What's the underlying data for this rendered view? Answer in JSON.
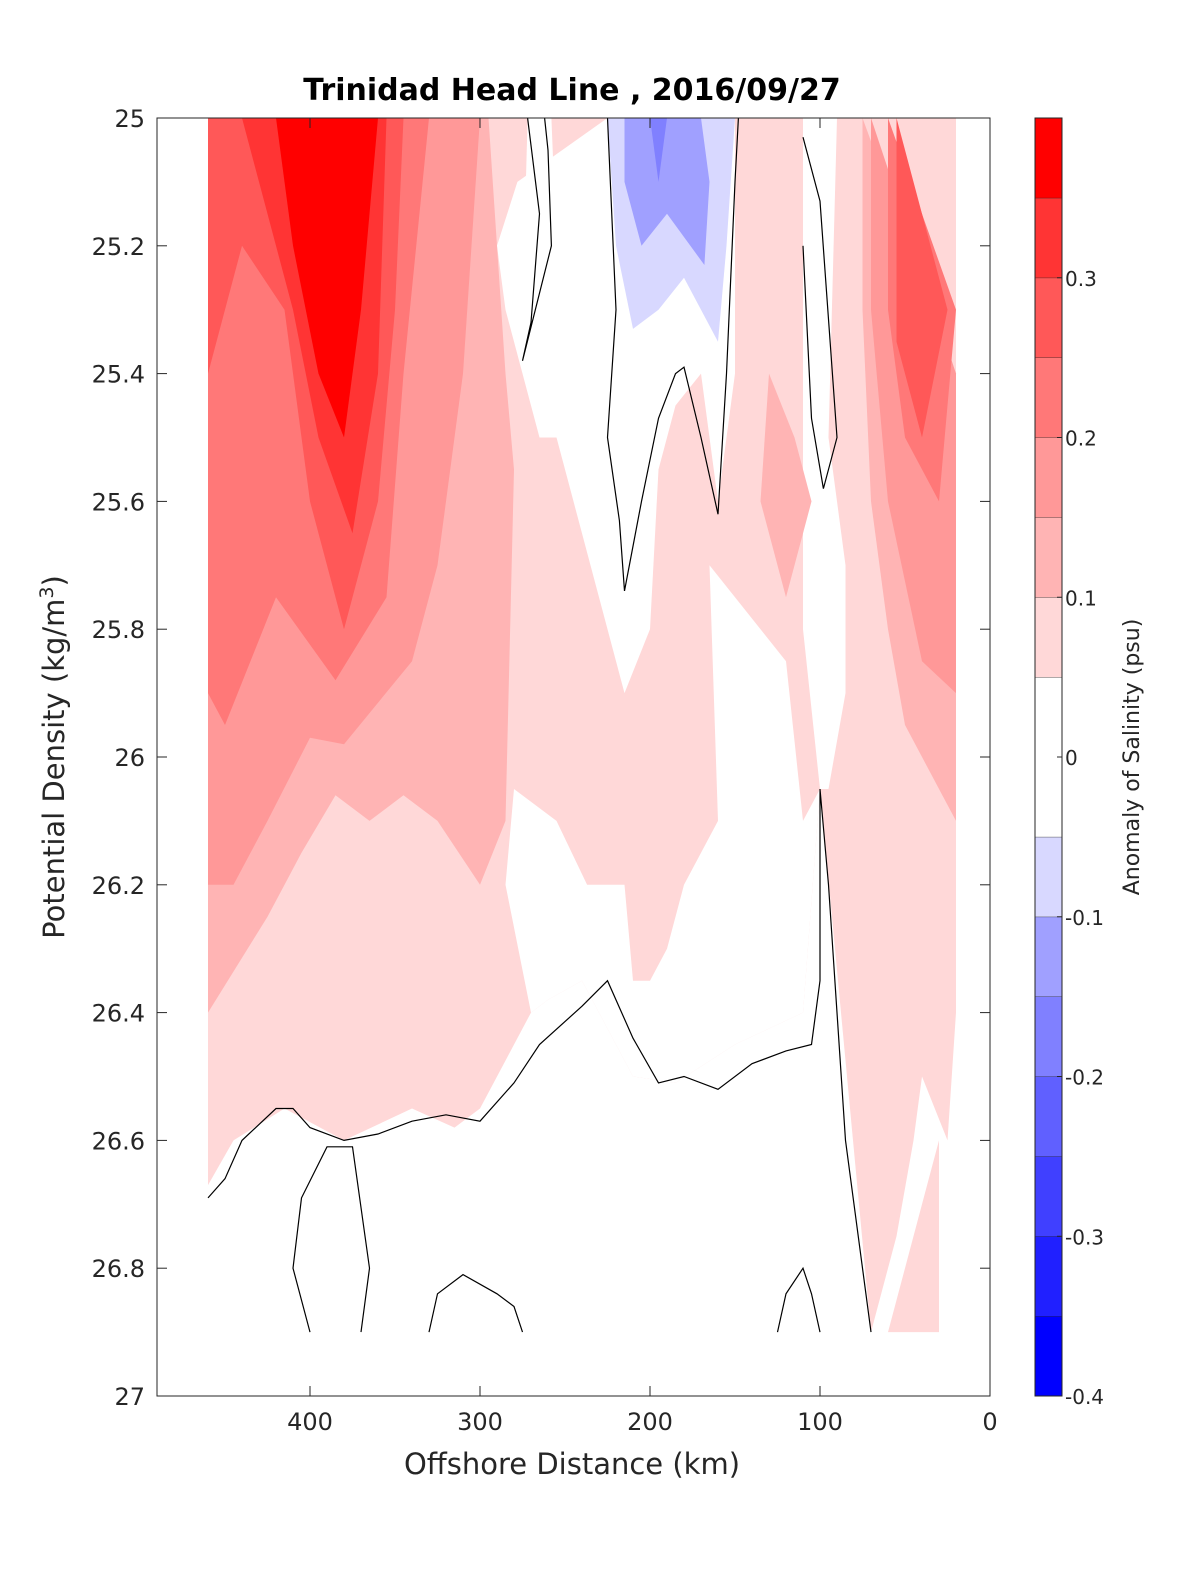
{
  "chart_data": {
    "type": "heatmap",
    "subtype": "filled-contour",
    "title": "Trinidad Head Line , 2016/09/27",
    "xlabel": "Offshore Distance (km)",
    "ylabel": "Potential Density (kg/m",
    "ylabel_superscript": "3",
    "ylabel_close": ")",
    "xlim": [
      490,
      0
    ],
    "x_reversed": true,
    "ylim": [
      25,
      27
    ],
    "y_reversed": true,
    "x_ticks": [
      "400",
      "300",
      "200",
      "100",
      "0"
    ],
    "x_tick_values": [
      400,
      300,
      200,
      100,
      0
    ],
    "y_ticks": [
      "25",
      "25.2",
      "25.4",
      "25.6",
      "25.8",
      "26",
      "26.2",
      "26.4",
      "26.6",
      "26.8",
      "27"
    ],
    "y_tick_values": [
      25,
      25.2,
      25.4,
      25.6,
      25.8,
      26,
      26.2,
      26.4,
      26.6,
      26.8,
      27
    ],
    "colorbar": {
      "label": "Anomaly of Salinity (psu)",
      "range": [
        -0.4,
        0.4
      ],
      "tick_labels": [
        "0.3",
        "0.2",
        "0.1",
        "0",
        "-0.1",
        "-0.2",
        "-0.3",
        "-0.4"
      ],
      "tick_values": [
        0.3,
        0.2,
        0.1,
        0,
        -0.1,
        -0.2,
        -0.3,
        -0.4
      ],
      "levels": [
        {
          "from": -0.4,
          "to": -0.35,
          "color": "#0000ff"
        },
        {
          "from": -0.35,
          "to": -0.3,
          "color": "#2020ff"
        },
        {
          "from": -0.3,
          "to": -0.25,
          "color": "#4040ff"
        },
        {
          "from": -0.25,
          "to": -0.2,
          "color": "#6060ff"
        },
        {
          "from": -0.2,
          "to": -0.15,
          "color": "#8080ff"
        },
        {
          "from": -0.15,
          "to": -0.1,
          "color": "#a0a0ff"
        },
        {
          "from": -0.1,
          "to": -0.05,
          "color": "#d8d8ff"
        },
        {
          "from": -0.05,
          "to": 0.05,
          "color": "#ffffff"
        },
        {
          "from": 0.05,
          "to": 0.1,
          "color": "#ffd8d8"
        },
        {
          "from": 0.1,
          "to": 0.15,
          "color": "#ffb4b4"
        },
        {
          "from": 0.15,
          "to": 0.2,
          "color": "#ff9898"
        },
        {
          "from": 0.2,
          "to": 0.25,
          "color": "#ff7878"
        },
        {
          "from": 0.25,
          "to": 0.3,
          "color": "#ff5858"
        },
        {
          "from": 0.3,
          "to": 0.35,
          "color": "#ff3434"
        },
        {
          "from": 0.35,
          "to": 0.4,
          "color": "#ff0000"
        }
      ]
    },
    "data_extent": {
      "x_max": 460,
      "x_min": 20,
      "y_max": 26.9
    },
    "regions": [
      {
        "level": 0.075,
        "points": [
          [
            460,
            25
          ],
          [
            20,
            25
          ],
          [
            20,
            25.6
          ],
          [
            20,
            26
          ],
          [
            20,
            26.4
          ],
          [
            25,
            26.6
          ],
          [
            40,
            26.5
          ],
          [
            45,
            26.6
          ],
          [
            55,
            26.75
          ],
          [
            70,
            26.9
          ],
          [
            100,
            26.05
          ],
          [
            110,
            26.4
          ],
          [
            150,
            26.45
          ],
          [
            185,
            26.51
          ],
          [
            210,
            26.5
          ],
          [
            240,
            26.35
          ],
          [
            260,
            26.38
          ],
          [
            270,
            26.4
          ],
          [
            300,
            26.55
          ],
          [
            315,
            26.58
          ],
          [
            340,
            26.55
          ],
          [
            380,
            26.6
          ],
          [
            415,
            26.55
          ],
          [
            445,
            26.6
          ],
          [
            460,
            26.67
          ]
        ]
      },
      {
        "level": 0.025,
        "points": [
          [
            272,
            25
          ],
          [
            258,
            25
          ],
          [
            255,
            25.2
          ],
          [
            262,
            25.36
          ],
          [
            275,
            25.32
          ],
          [
            273,
            25.1
          ]
        ]
      },
      {
        "level": 0.025,
        "points": [
          [
            225,
            25
          ],
          [
            150,
            25
          ],
          [
            150,
            25.4
          ],
          [
            160,
            25.6
          ],
          [
            170,
            25.4
          ],
          [
            185,
            25.45
          ],
          [
            195,
            25.55
          ],
          [
            200,
            25.8
          ],
          [
            215,
            25.9
          ],
          [
            230,
            25.75
          ],
          [
            245,
            25.6
          ],
          [
            255,
            25.5
          ],
          [
            265,
            25.5
          ],
          [
            275,
            25.4
          ],
          [
            285,
            25.3
          ],
          [
            290,
            25.2
          ],
          [
            278,
            25.1
          ]
        ]
      },
      {
        "level": 0.025,
        "points": [
          [
            165,
            25.7
          ],
          [
            120,
            25.85
          ],
          [
            110,
            26.1
          ],
          [
            100,
            26.05
          ],
          [
            110,
            26.4
          ],
          [
            150,
            26.45
          ],
          [
            185,
            26.51
          ],
          [
            210,
            26.5
          ],
          [
            240,
            26.35
          ],
          [
            260,
            26.38
          ],
          [
            270,
            26.4
          ],
          [
            285,
            26.2
          ],
          [
            280,
            26.05
          ],
          [
            255,
            26.1
          ],
          [
            237,
            26.2
          ],
          [
            215,
            26.2
          ],
          [
            210,
            26.35
          ],
          [
            200,
            26.35
          ],
          [
            190,
            26.3
          ],
          [
            180,
            26.2
          ],
          [
            160,
            26.1
          ]
        ]
      },
      {
        "level": 0.025,
        "points": [
          [
            110,
            25
          ],
          [
            90,
            25
          ],
          [
            95,
            25.5
          ],
          [
            85,
            25.7
          ],
          [
            85,
            25.9
          ],
          [
            95,
            26.05
          ],
          [
            100,
            26.05
          ],
          [
            110,
            25.8
          ]
        ]
      },
      {
        "level": 0.125,
        "points": [
          [
            460,
            25
          ],
          [
            295,
            25
          ],
          [
            290,
            25.2
          ],
          [
            285,
            25.4
          ],
          [
            280,
            25.55
          ],
          [
            285,
            26.1
          ],
          [
            300,
            26.2
          ],
          [
            325,
            26.1
          ],
          [
            345,
            26.06
          ],
          [
            365,
            26.1
          ],
          [
            385,
            26.06
          ],
          [
            405,
            26.15
          ],
          [
            425,
            26.25
          ],
          [
            460,
            26.4
          ]
        ]
      },
      {
        "level": 0.125,
        "points": [
          [
            130,
            25.4
          ],
          [
            115,
            25.5
          ],
          [
            105,
            25.6
          ],
          [
            120,
            25.75
          ],
          [
            135,
            25.6
          ]
        ]
      },
      {
        "level": 0.125,
        "points": [
          [
            75,
            25
          ],
          [
            20,
            25.4
          ],
          [
            20,
            26.1
          ],
          [
            30,
            26.05
          ],
          [
            50,
            25.95
          ],
          [
            60,
            25.8
          ],
          [
            70,
            25.6
          ],
          [
            75,
            25.3
          ]
        ]
      },
      {
        "level": 0.175,
        "points": [
          [
            460,
            25
          ],
          [
            300,
            25
          ],
          [
            310,
            25.4
          ],
          [
            325,
            25.7
          ],
          [
            340,
            25.85
          ],
          [
            380,
            25.98
          ],
          [
            400,
            25.97
          ],
          [
            425,
            26.1
          ],
          [
            445,
            26.2
          ],
          [
            460,
            26.2
          ]
        ]
      },
      {
        "level": 0.175,
        "points": [
          [
            70,
            25
          ],
          [
            20,
            25.4
          ],
          [
            20,
            25.9
          ],
          [
            40,
            25.85
          ],
          [
            60,
            25.6
          ],
          [
            70,
            25.3
          ]
        ]
      },
      {
        "level": 0.225,
        "points": [
          [
            460,
            25
          ],
          [
            330,
            25
          ],
          [
            345,
            25.4
          ],
          [
            355,
            25.75
          ],
          [
            385,
            25.88
          ],
          [
            420,
            25.75
          ],
          [
            450,
            25.95
          ],
          [
            460,
            25.9
          ]
        ]
      },
      {
        "level": 0.225,
        "points": [
          [
            60,
            25
          ],
          [
            20,
            25.3
          ],
          [
            30,
            25.6
          ],
          [
            50,
            25.5
          ],
          [
            60,
            25.3
          ]
        ]
      },
      {
        "level": 0.275,
        "points": [
          [
            460,
            25
          ],
          [
            345,
            25
          ],
          [
            350,
            25.3
          ],
          [
            360,
            25.6
          ],
          [
            380,
            25.8
          ],
          [
            400,
            25.6
          ],
          [
            415,
            25.3
          ],
          [
            440,
            25.2
          ],
          [
            460,
            25.4
          ]
        ]
      },
      {
        "level": 0.275,
        "points": [
          [
            55,
            25
          ],
          [
            25,
            25.3
          ],
          [
            40,
            25.5
          ],
          [
            55,
            25.35
          ]
        ]
      },
      {
        "level": 0.325,
        "points": [
          [
            440,
            25
          ],
          [
            355,
            25
          ],
          [
            360,
            25.4
          ],
          [
            375,
            25.65
          ],
          [
            395,
            25.5
          ],
          [
            410,
            25.3
          ],
          [
            430,
            25.1
          ]
        ]
      },
      {
        "level": 0.375,
        "points": [
          [
            420,
            25
          ],
          [
            360,
            25
          ],
          [
            370,
            25.3
          ],
          [
            380,
            25.5
          ],
          [
            395,
            25.4
          ],
          [
            410,
            25.2
          ]
        ]
      },
      {
        "level": -0.075,
        "points": [
          [
            225,
            25
          ],
          [
            150,
            25
          ],
          [
            155,
            25.2
          ],
          [
            160,
            25.35
          ],
          [
            180,
            25.25
          ],
          [
            195,
            25.3
          ],
          [
            210,
            25.33
          ],
          [
            220,
            25.2
          ]
        ]
      },
      {
        "level": -0.125,
        "points": [
          [
            215,
            25
          ],
          [
            170,
            25
          ],
          [
            165,
            25.1
          ],
          [
            168,
            25.23
          ],
          [
            190,
            25.15
          ],
          [
            205,
            25.2
          ],
          [
            215,
            25.1
          ]
        ]
      },
      {
        "level": -0.175,
        "points": [
          [
            200,
            25
          ],
          [
            190,
            25
          ],
          [
            195,
            25.1
          ]
        ]
      },
      {
        "level": 0.075,
        "points": [
          [
            30,
            26.6
          ],
          [
            40,
            26.7
          ],
          [
            60,
            26.9
          ],
          [
            30,
            26.9
          ]
        ]
      }
    ],
    "contour_lines": [
      [
        [
          460,
          26.69
        ],
        [
          450,
          26.66
        ],
        [
          440,
          26.6
        ],
        [
          420,
          26.55
        ],
        [
          410,
          26.55
        ],
        [
          400,
          26.58
        ],
        [
          380,
          26.6
        ],
        [
          360,
          26.59
        ],
        [
          340,
          26.57
        ],
        [
          320,
          26.56
        ],
        [
          300,
          26.57
        ],
        [
          280,
          26.51
        ],
        [
          265,
          26.45
        ],
        [
          240,
          26.39
        ],
        [
          225,
          26.35
        ],
        [
          210,
          26.44
        ],
        [
          195,
          26.51
        ],
        [
          180,
          26.5
        ],
        [
          160,
          26.52
        ],
        [
          140,
          26.48
        ],
        [
          120,
          26.46
        ],
        [
          105,
          26.45
        ],
        [
          100,
          26.35
        ],
        [
          100,
          26.05
        ],
        [
          95,
          26.2
        ],
        [
          85,
          26.6
        ],
        [
          70,
          26.9
        ]
      ],
      [
        [
          400,
          26.9
        ],
        [
          410,
          26.8
        ],
        [
          405,
          26.69
        ],
        [
          390,
          26.61
        ],
        [
          375,
          26.61
        ],
        [
          365,
          26.8
        ],
        [
          370,
          26.9
        ]
      ],
      [
        [
          330,
          26.9
        ],
        [
          325,
          26.84
        ],
        [
          310,
          26.81
        ],
        [
          290,
          26.84
        ],
        [
          280,
          26.86
        ],
        [
          275,
          26.9
        ]
      ],
      [
        [
          125,
          26.9
        ],
        [
          120,
          26.84
        ],
        [
          110,
          26.8
        ],
        [
          105,
          26.84
        ],
        [
          100,
          26.9
        ]
      ],
      [
        [
          272,
          25
        ],
        [
          265,
          25.15
        ],
        [
          270,
          25.32
        ],
        [
          275,
          25.38
        ],
        [
          258,
          25.2
        ],
        [
          260,
          25.05
        ],
        [
          262,
          25
        ]
      ],
      [
        [
          225,
          25
        ],
        [
          220,
          25.3
        ],
        [
          225,
          25.5
        ],
        [
          218,
          25.63
        ],
        [
          215,
          25.74
        ],
        [
          205,
          25.6
        ],
        [
          195,
          25.47
        ],
        [
          185,
          25.4
        ],
        [
          180,
          25.39
        ],
        [
          170,
          25.5
        ],
        [
          160,
          25.62
        ],
        [
          155,
          25.4
        ],
        [
          150,
          25.1
        ],
        [
          148,
          25
        ]
      ],
      [
        [
          110,
          25.03
        ],
        [
          100,
          25.13
        ],
        [
          90,
          25.5
        ],
        [
          98,
          25.58
        ],
        [
          105,
          25.47
        ],
        [
          110,
          25.2
        ]
      ]
    ]
  }
}
